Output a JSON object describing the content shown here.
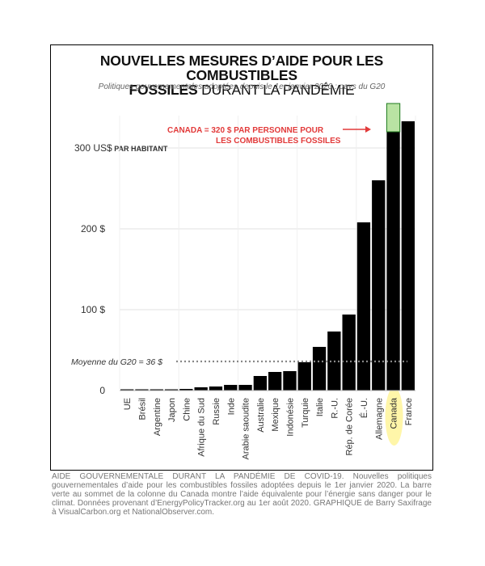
{
  "title": {
    "line1": "NOUVELLES MESURES D’AIDE POUR LES COMBUSTIBLES",
    "line2_bold": "FOSSILES",
    "line2_rest": " DURANT LA PANDÉMIE"
  },
  "subtitle": "Politiques gouvernementales adoptées depuis le 1er janvier 2020 : pays du G20",
  "caption": "AIDE GOUVERNEMENTALE DURANT LA PANDÉMIE DE COVID-19. Nouvelles politiques gouvernementales d’aide pour les combustibles fossiles adoptées depuis le 1er janvier 2020. La barre verte au sommet de la colonne du Canada montre l’aide équivalente pour l’énergie sans danger pour le climat. Données provenant d’EnergyPolicyTracker.org au 1er août 2020. GRAPHIQUE de Barry Saxifrage à VisualCarbon.org et NationalObserver.com.",
  "chart_data": {
    "type": "bar",
    "title": "NOUVELLES MESURES D’AIDE POUR LES COMBUSTIBLES FOSSILES DURANT LA PANDÉMIE",
    "subtitle": "Politiques gouvernementales adoptées depuis le 1er janvier 2020 : pays du G20",
    "categories": [
      "UE",
      "Brésil",
      "Argentine",
      "Japon",
      "Chine",
      "Afrique du Sud",
      "Russie",
      "Inde",
      "Arabie saoudite",
      "Australie",
      "Mexique",
      "Indonésie",
      "Turquie",
      "Italie",
      "R.-U.",
      "Rép. de Corée",
      "É.-U.",
      "Allemagne",
      "Canada",
      "France"
    ],
    "values": [
      1,
      1,
      1,
      1,
      2,
      4,
      5,
      7,
      7,
      18,
      23,
      24,
      35,
      54,
      73,
      94,
      208,
      260,
      320,
      333
    ],
    "highlight": {
      "category": "Canada",
      "green_value": 35,
      "green_color": "#b9e3a3",
      "label_color": "#e23a3a",
      "axis_label_glow": "#fff59a"
    },
    "bar_color": "#000000",
    "y_ticks": [
      {
        "value": 0,
        "label": "0"
      },
      {
        "value": 100,
        "label": "100 $"
      },
      {
        "value": 200,
        "label": "200 $"
      },
      {
        "value": 300,
        "label": "300 US$"
      }
    ],
    "y_unit_suffix": " PAR HABITANT",
    "ylim": [
      0,
      340
    ],
    "grid": true,
    "reference_line": {
      "value": 36,
      "label": "Moyenne du G20 = 36 $"
    },
    "annotation": {
      "line1": "CANADA = 320 $ PAR PERSONNE POUR",
      "line2": "LES COMBUSTIBLES FOSSILES"
    }
  }
}
